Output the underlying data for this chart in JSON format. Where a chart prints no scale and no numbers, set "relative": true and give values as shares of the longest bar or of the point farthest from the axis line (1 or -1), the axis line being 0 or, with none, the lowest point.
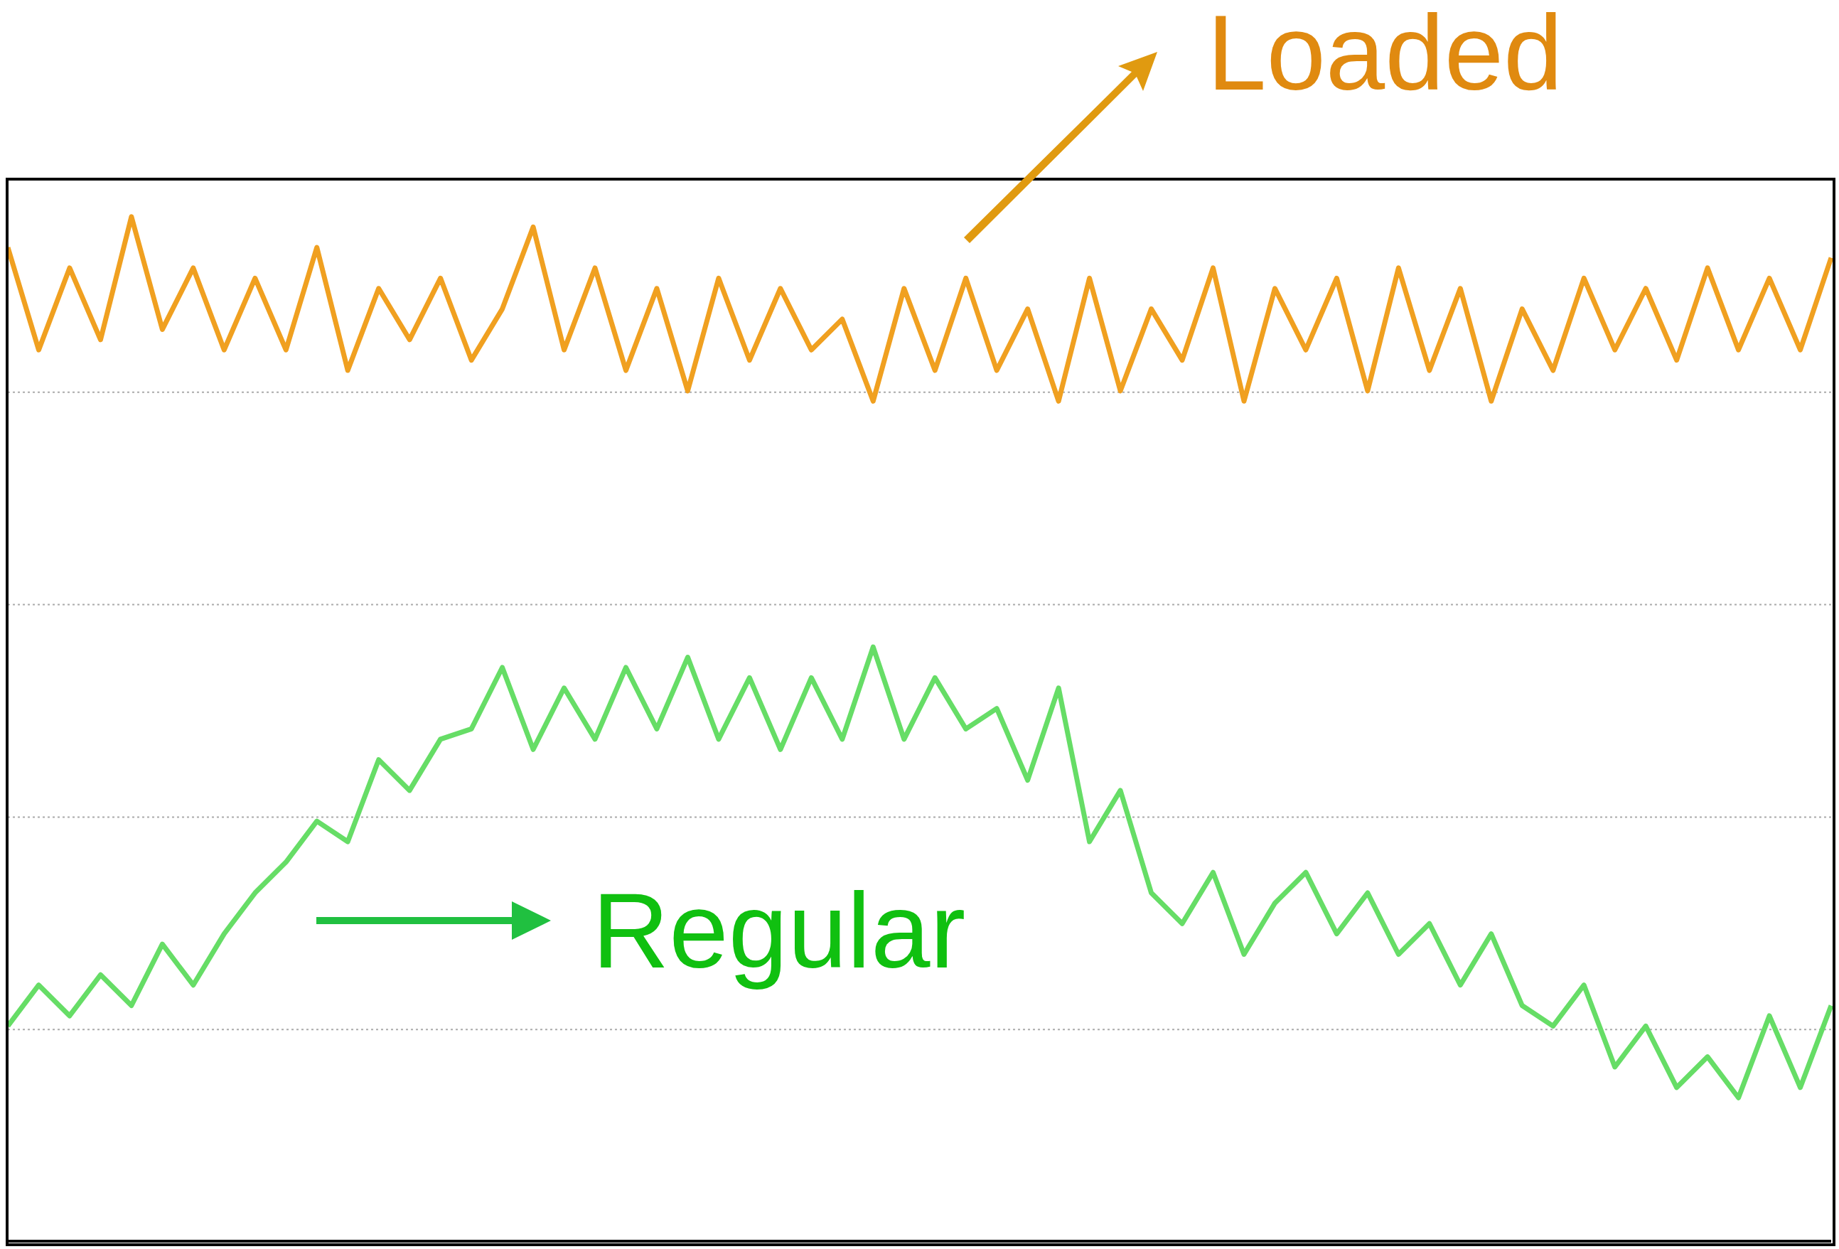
{
  "chart_data": {
    "type": "line",
    "relative": true,
    "grid": true,
    "marker": "none",
    "line_style": "solid",
    "categories": [
      null,
      null,
      null,
      null,
      null,
      null,
      null,
      null,
      null,
      null,
      null,
      null,
      null,
      null,
      null,
      null,
      null,
      null,
      null,
      null,
      null,
      null,
      null,
      null,
      null,
      null,
      null,
      null,
      null,
      null,
      null,
      null,
      null,
      null,
      null,
      null,
      null,
      null,
      null,
      null,
      null,
      null,
      null,
      null,
      null,
      null,
      null,
      null,
      null,
      null,
      null,
      null,
      null,
      null,
      null,
      null,
      null,
      null,
      null,
      null
    ],
    "annotations": [
      "Loaded",
      "Regular"
    ],
    "series": [
      {
        "color": "#f0a020",
        "values": [
          0.97,
          0.87,
          0.95,
          0.88,
          1.0,
          0.89,
          0.95,
          0.87,
          0.94,
          0.87,
          0.97,
          0.85,
          0.93,
          0.88,
          0.94,
          0.86,
          0.91,
          0.99,
          0.87,
          0.95,
          0.85,
          0.93,
          0.83,
          0.94,
          0.86,
          0.93,
          0.87,
          0.9,
          0.82,
          0.93,
          0.85,
          0.94,
          0.85,
          0.91,
          0.82,
          0.94,
          0.83,
          0.91,
          0.86,
          0.95,
          0.82,
          0.93,
          0.87,
          0.94,
          0.83,
          0.95,
          0.85,
          0.93,
          0.82,
          0.91,
          0.85,
          0.94,
          0.87,
          0.93,
          0.86,
          0.95,
          0.87,
          0.94,
          0.87,
          0.96
        ]
      },
      {
        "color": "#66dd66",
        "values": [
          0.21,
          0.25,
          0.22,
          0.26,
          0.23,
          0.29,
          0.25,
          0.3,
          0.34,
          0.37,
          0.41,
          0.39,
          0.47,
          0.44,
          0.49,
          0.5,
          0.56,
          0.48,
          0.54,
          0.49,
          0.56,
          0.5,
          0.57,
          0.49,
          0.55,
          0.48,
          0.55,
          0.49,
          0.58,
          0.49,
          0.55,
          0.5,
          0.52,
          0.45,
          0.54,
          0.39,
          0.44,
          0.34,
          0.31,
          0.36,
          0.28,
          0.33,
          0.36,
          0.3,
          0.34,
          0.28,
          0.31,
          0.25,
          0.3,
          0.23,
          0.21,
          0.25,
          0.17,
          0.21,
          0.15,
          0.18,
          0.14,
          0.22,
          0.15,
          0.23
        ]
      }
    ]
  }
}
